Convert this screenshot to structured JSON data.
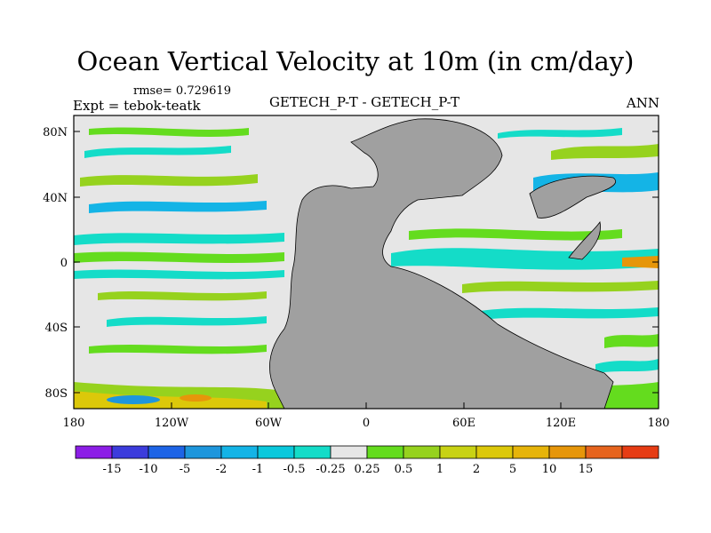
{
  "title": "Ocean Vertical Velocity at 10m (in cm/day)",
  "rmse": "rmse= 0.729619",
  "expt": "Expt = tebok-teatk",
  "subtitle": "GETECH_P-T - GETECH_P-T",
  "season": "ANN",
  "lat_ticks": [
    "80N",
    "40N",
    "0",
    "40S",
    "80S"
  ],
  "lon_ticks": [
    "180",
    "120W",
    "60W",
    "0",
    "60E",
    "120E",
    "180"
  ],
  "colorbar": {
    "colors": [
      "#8c1ee6",
      "#3c3cdc",
      "#1e64e6",
      "#1e96dc",
      "#14b4e6",
      "#0ac8dc",
      "#14dcc8",
      "#e6e6e6",
      "#64dc1e",
      "#96d21e",
      "#c8d214",
      "#dcc80a",
      "#e6b40a",
      "#e6960a",
      "#e6641e",
      "#e63c14"
    ],
    "labels": [
      "-15",
      "-10",
      "-5",
      "-2",
      "-1",
      "-0.5",
      "-0.25",
      "0.25",
      "0.5",
      "1",
      "2",
      "5",
      "10",
      "15"
    ]
  },
  "land_color": "#a0a0a0"
}
